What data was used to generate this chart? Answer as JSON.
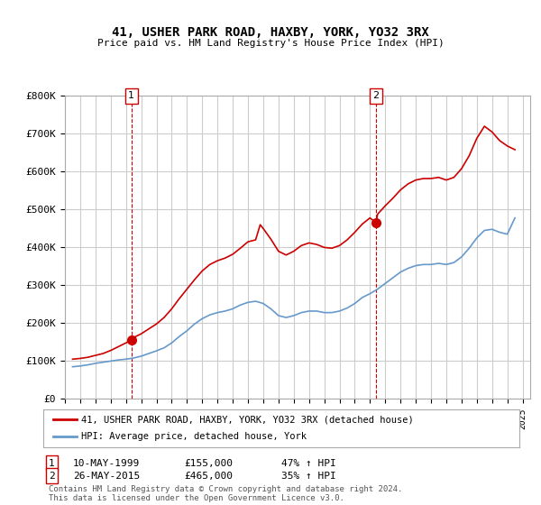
{
  "title": "41, USHER PARK ROAD, HAXBY, YORK, YO32 3RX",
  "subtitle": "Price paid vs. HM Land Registry's House Price Index (HPI)",
  "ylabel_ticks": [
    "£0",
    "£100K",
    "£200K",
    "£300K",
    "£400K",
    "£500K",
    "£600K",
    "£700K",
    "£800K"
  ],
  "ylim": [
    0,
    800000
  ],
  "xlim_start": 1995.0,
  "xlim_end": 2025.5,
  "sale1_year": 1999.36,
  "sale1_price": 155000,
  "sale1_label": "1",
  "sale1_date": "10-MAY-1999",
  "sale1_hpi_pct": "47% ↑ HPI",
  "sale2_year": 2015.39,
  "sale2_price": 465000,
  "sale2_label": "2",
  "sale2_date": "26-MAY-2015",
  "sale2_hpi_pct": "35% ↑ HPI",
  "line_color_property": "#cc0000",
  "line_color_hpi": "#6699cc",
  "vline_color": "#cc0000",
  "marker_color_property": "#cc0000",
  "grid_color": "#cccccc",
  "background_color": "#ffffff",
  "legend_line1": "41, USHER PARK ROAD, HAXBY, YORK, YO32 3RX (detached house)",
  "legend_line2": "HPI: Average price, detached house, York",
  "footer": "Contains HM Land Registry data © Crown copyright and database right 2024.\nThis data is licensed under the Open Government Licence v3.0.",
  "hpi_data": {
    "years": [
      1995.5,
      1996.0,
      1996.5,
      1997.0,
      1997.5,
      1998.0,
      1998.5,
      1999.0,
      1999.5,
      2000.0,
      2000.5,
      2001.0,
      2001.5,
      2002.0,
      2002.5,
      2003.0,
      2003.5,
      2004.0,
      2004.5,
      2005.0,
      2005.5,
      2006.0,
      2006.5,
      2007.0,
      2007.5,
      2008.0,
      2008.5,
      2009.0,
      2009.5,
      2010.0,
      2010.5,
      2011.0,
      2011.5,
      2012.0,
      2012.5,
      2013.0,
      2013.5,
      2014.0,
      2014.5,
      2015.0,
      2015.5,
      2016.0,
      2016.5,
      2017.0,
      2017.5,
      2018.0,
      2018.5,
      2019.0,
      2019.5,
      2020.0,
      2020.5,
      2021.0,
      2021.5,
      2022.0,
      2022.5,
      2023.0,
      2023.5,
      2024.0,
      2024.5
    ],
    "values": [
      85000,
      87000,
      90000,
      94000,
      97000,
      100000,
      103000,
      105000,
      108000,
      113000,
      120000,
      127000,
      135000,
      148000,
      165000,
      180000,
      198000,
      212000,
      222000,
      228000,
      232000,
      238000,
      248000,
      255000,
      258000,
      252000,
      238000,
      220000,
      215000,
      220000,
      228000,
      232000,
      232000,
      228000,
      228000,
      232000,
      240000,
      252000,
      268000,
      278000,
      290000,
      305000,
      320000,
      335000,
      345000,
      352000,
      355000,
      355000,
      358000,
      355000,
      360000,
      375000,
      398000,
      425000,
      445000,
      448000,
      440000,
      435000,
      478000
    ]
  },
  "property_data": {
    "years": [
      1995.5,
      1996.0,
      1996.5,
      1997.0,
      1997.5,
      1998.0,
      1998.5,
      1999.0,
      1999.36,
      1999.5,
      2000.0,
      2000.5,
      2001.0,
      2001.5,
      2002.0,
      2002.5,
      2003.0,
      2003.5,
      2004.0,
      2004.5,
      2005.0,
      2005.5,
      2006.0,
      2006.5,
      2007.0,
      2007.5,
      2007.8,
      2008.0,
      2008.5,
      2009.0,
      2009.5,
      2010.0,
      2010.5,
      2011.0,
      2011.5,
      2012.0,
      2012.5,
      2013.0,
      2013.5,
      2014.0,
      2014.5,
      2015.0,
      2015.39,
      2015.5,
      2016.0,
      2016.5,
      2017.0,
      2017.5,
      2018.0,
      2018.5,
      2019.0,
      2019.5,
      2020.0,
      2020.5,
      2021.0,
      2021.5,
      2022.0,
      2022.5,
      2023.0,
      2023.5,
      2024.0,
      2024.5
    ],
    "values": [
      105000,
      107000,
      110000,
      115000,
      120000,
      128000,
      138000,
      148000,
      155000,
      162000,
      172000,
      185000,
      198000,
      215000,
      238000,
      265000,
      290000,
      315000,
      338000,
      355000,
      365000,
      372000,
      382000,
      398000,
      415000,
      420000,
      460000,
      450000,
      422000,
      390000,
      380000,
      390000,
      405000,
      412000,
      408000,
      400000,
      398000,
      405000,
      420000,
      440000,
      462000,
      478000,
      465000,
      488000,
      510000,
      530000,
      552000,
      568000,
      578000,
      582000,
      582000,
      585000,
      578000,
      585000,
      608000,
      642000,
      688000,
      720000,
      705000,
      682000,
      668000,
      658000
    ]
  }
}
